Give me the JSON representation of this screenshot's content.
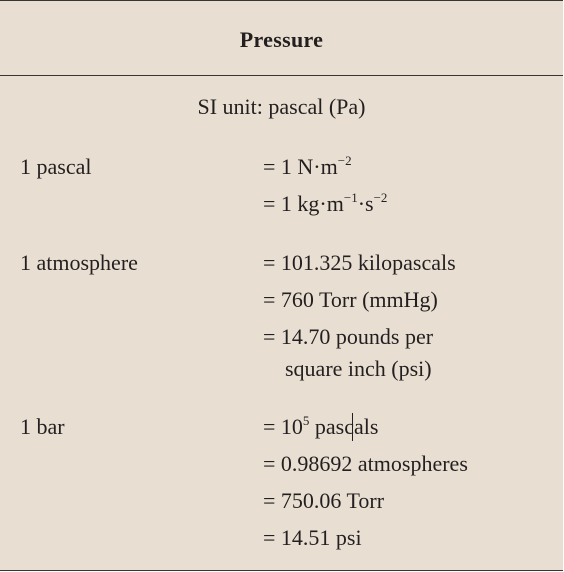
{
  "title": "Pressure",
  "si_unit": "SI unit: pascal (Pa)",
  "rows": [
    {
      "label": "1 pascal",
      "values": [
        {
          "prefix": "= 1 N·m",
          "sup": "−2",
          "suffix": ""
        },
        {
          "prefix": "= 1 kg·m",
          "sup": "−1",
          "mid": "·s",
          "sup2": "−2"
        }
      ]
    },
    {
      "label": "1 atmosphere",
      "values": [
        {
          "text": "= 101.325 kilopascals"
        },
        {
          "text": "= 760 Torr (mmHg)"
        },
        {
          "text": "= 14.70 pounds per"
        },
        {
          "text": "square inch (psi)"
        }
      ]
    },
    {
      "label": "1 bar",
      "values": [
        {
          "prefix": "= 10",
          "sup": "5",
          "suffix": " pascals"
        },
        {
          "text": "= 0.98692 atmospheres"
        },
        {
          "text": "= 750.06 Torr"
        },
        {
          "text": "= 14.51 psi"
        }
      ]
    }
  ]
}
